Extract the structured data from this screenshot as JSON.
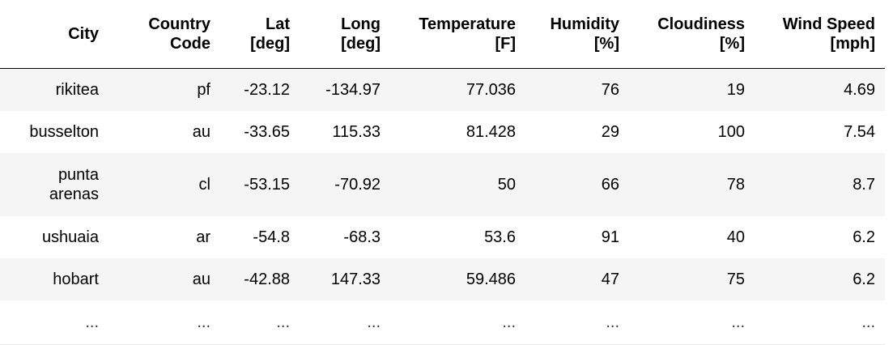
{
  "table": {
    "headers": [
      [
        "City"
      ],
      [
        "Country",
        "Code"
      ],
      [
        "Lat",
        "[deg]"
      ],
      [
        "Long",
        "[deg]"
      ],
      [
        "Temperature",
        "[F]"
      ],
      [
        "Humidity",
        "[%]"
      ],
      [
        "Cloudiness",
        "[%]"
      ],
      [
        "Wind Speed",
        "[mph]"
      ]
    ],
    "rows": [
      {
        "city": [
          "rikitea"
        ],
        "country_code": "pf",
        "lat": "-23.12",
        "long": "-134.97",
        "temperature": "77.036",
        "humidity": "76",
        "cloudiness": "19",
        "wind_speed": "4.69"
      },
      {
        "city": [
          "busselton"
        ],
        "country_code": "au",
        "lat": "-33.65",
        "long": "115.33",
        "temperature": "81.428",
        "humidity": "29",
        "cloudiness": "100",
        "wind_speed": "7.54"
      },
      {
        "city": [
          "punta",
          "arenas"
        ],
        "country_code": "cl",
        "lat": "-53.15",
        "long": "-70.92",
        "temperature": "50",
        "humidity": "66",
        "cloudiness": "78",
        "wind_speed": "8.7"
      },
      {
        "city": [
          "ushuaia"
        ],
        "country_code": "ar",
        "lat": "-54.8",
        "long": "-68.3",
        "temperature": "53.6",
        "humidity": "91",
        "cloudiness": "40",
        "wind_speed": "6.2"
      },
      {
        "city": [
          "hobart"
        ],
        "country_code": "au",
        "lat": "-42.88",
        "long": "147.33",
        "temperature": "59.486",
        "humidity": "47",
        "cloudiness": "75",
        "wind_speed": "6.2"
      }
    ],
    "ellipsis_row": [
      "...",
      "...",
      "...",
      "...",
      "...",
      "...",
      "...",
      "..."
    ]
  }
}
